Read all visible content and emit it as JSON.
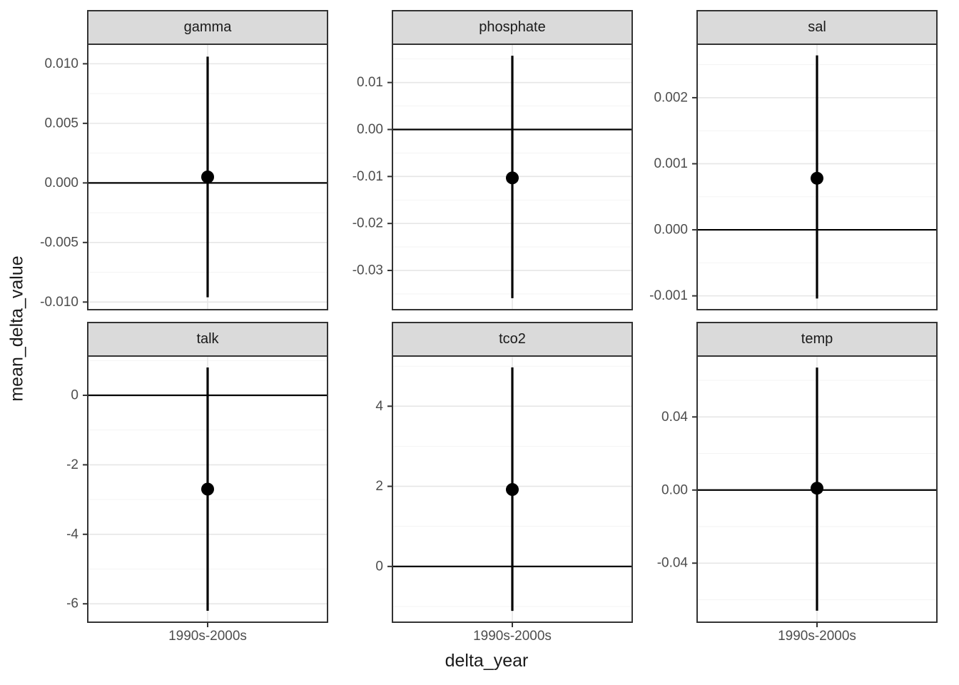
{
  "chart_data": {
    "type": "scatter",
    "subtype": "faceted-pointrange",
    "title": "",
    "xlabel": "delta_year",
    "ylabel": "mean_delta_value",
    "x_category": "1990s-2000s",
    "grid": "on",
    "legend": "none",
    "colors": {
      "background": "#ffffff",
      "strip_fill": "#dadada",
      "border": "#333333",
      "grid_major": "#e6e6e6",
      "grid_minor": "#f2f2f2",
      "geom": "#000000",
      "tick_label": "#4d4d4d",
      "title": "#1a1a1a"
    },
    "facets": [
      {
        "label": "gamma",
        "ylim": [
          -0.0107,
          0.0117
        ],
        "tick_values": [
          0.01,
          0.005,
          0.0,
          -0.005,
          -0.01
        ],
        "tick_labels": [
          "0.010",
          "0.005",
          "0.000",
          "-0.005",
          "-0.010"
        ],
        "point": 0.0005,
        "err_low": -0.0096,
        "err_high": 0.0106,
        "zero_line": 0
      },
      {
        "label": "phosphate",
        "ylim": [
          -0.0385,
          0.0183
        ],
        "tick_values": [
          0.01,
          0.0,
          -0.01,
          -0.02,
          -0.03
        ],
        "tick_labels": [
          "0.01",
          "0.00",
          "-0.01",
          "-0.02",
          "-0.03"
        ],
        "point": -0.0103,
        "err_low": -0.0359,
        "err_high": 0.0157,
        "zero_line": 0
      },
      {
        "label": "sal",
        "ylim": [
          -0.00122,
          0.00282
        ],
        "tick_values": [
          0.002,
          0.001,
          0.0,
          -0.001
        ],
        "tick_labels": [
          "0.002",
          "0.001",
          "0.000",
          "-0.001"
        ],
        "point": 0.00078,
        "err_low": -0.00104,
        "err_high": 0.00264,
        "zero_line": 0
      },
      {
        "label": "talk",
        "ylim": [
          -6.55,
          1.15
        ],
        "tick_values": [
          0,
          -2,
          -4,
          -6
        ],
        "tick_labels": [
          "0",
          "-2",
          "-4",
          "-6"
        ],
        "point": -2.7,
        "err_low": -6.2,
        "err_high": 0.8,
        "zero_line": 0
      },
      {
        "label": "tco2",
        "ylim": [
          -1.41,
          5.27
        ],
        "tick_values": [
          4,
          2,
          0
        ],
        "tick_labels": [
          "4",
          "2",
          "0"
        ],
        "point": 1.92,
        "err_low": -1.11,
        "err_high": 4.97,
        "zero_line": 0
      },
      {
        "label": "temp",
        "ylim": [
          -0.0727,
          0.0737
        ],
        "tick_values": [
          0.04,
          0.0,
          -0.04
        ],
        "tick_labels": [
          "0.04",
          "0.00",
          "-0.04"
        ],
        "point": 0.001,
        "err_low": -0.066,
        "err_high": 0.067,
        "zero_line": 0
      }
    ]
  }
}
